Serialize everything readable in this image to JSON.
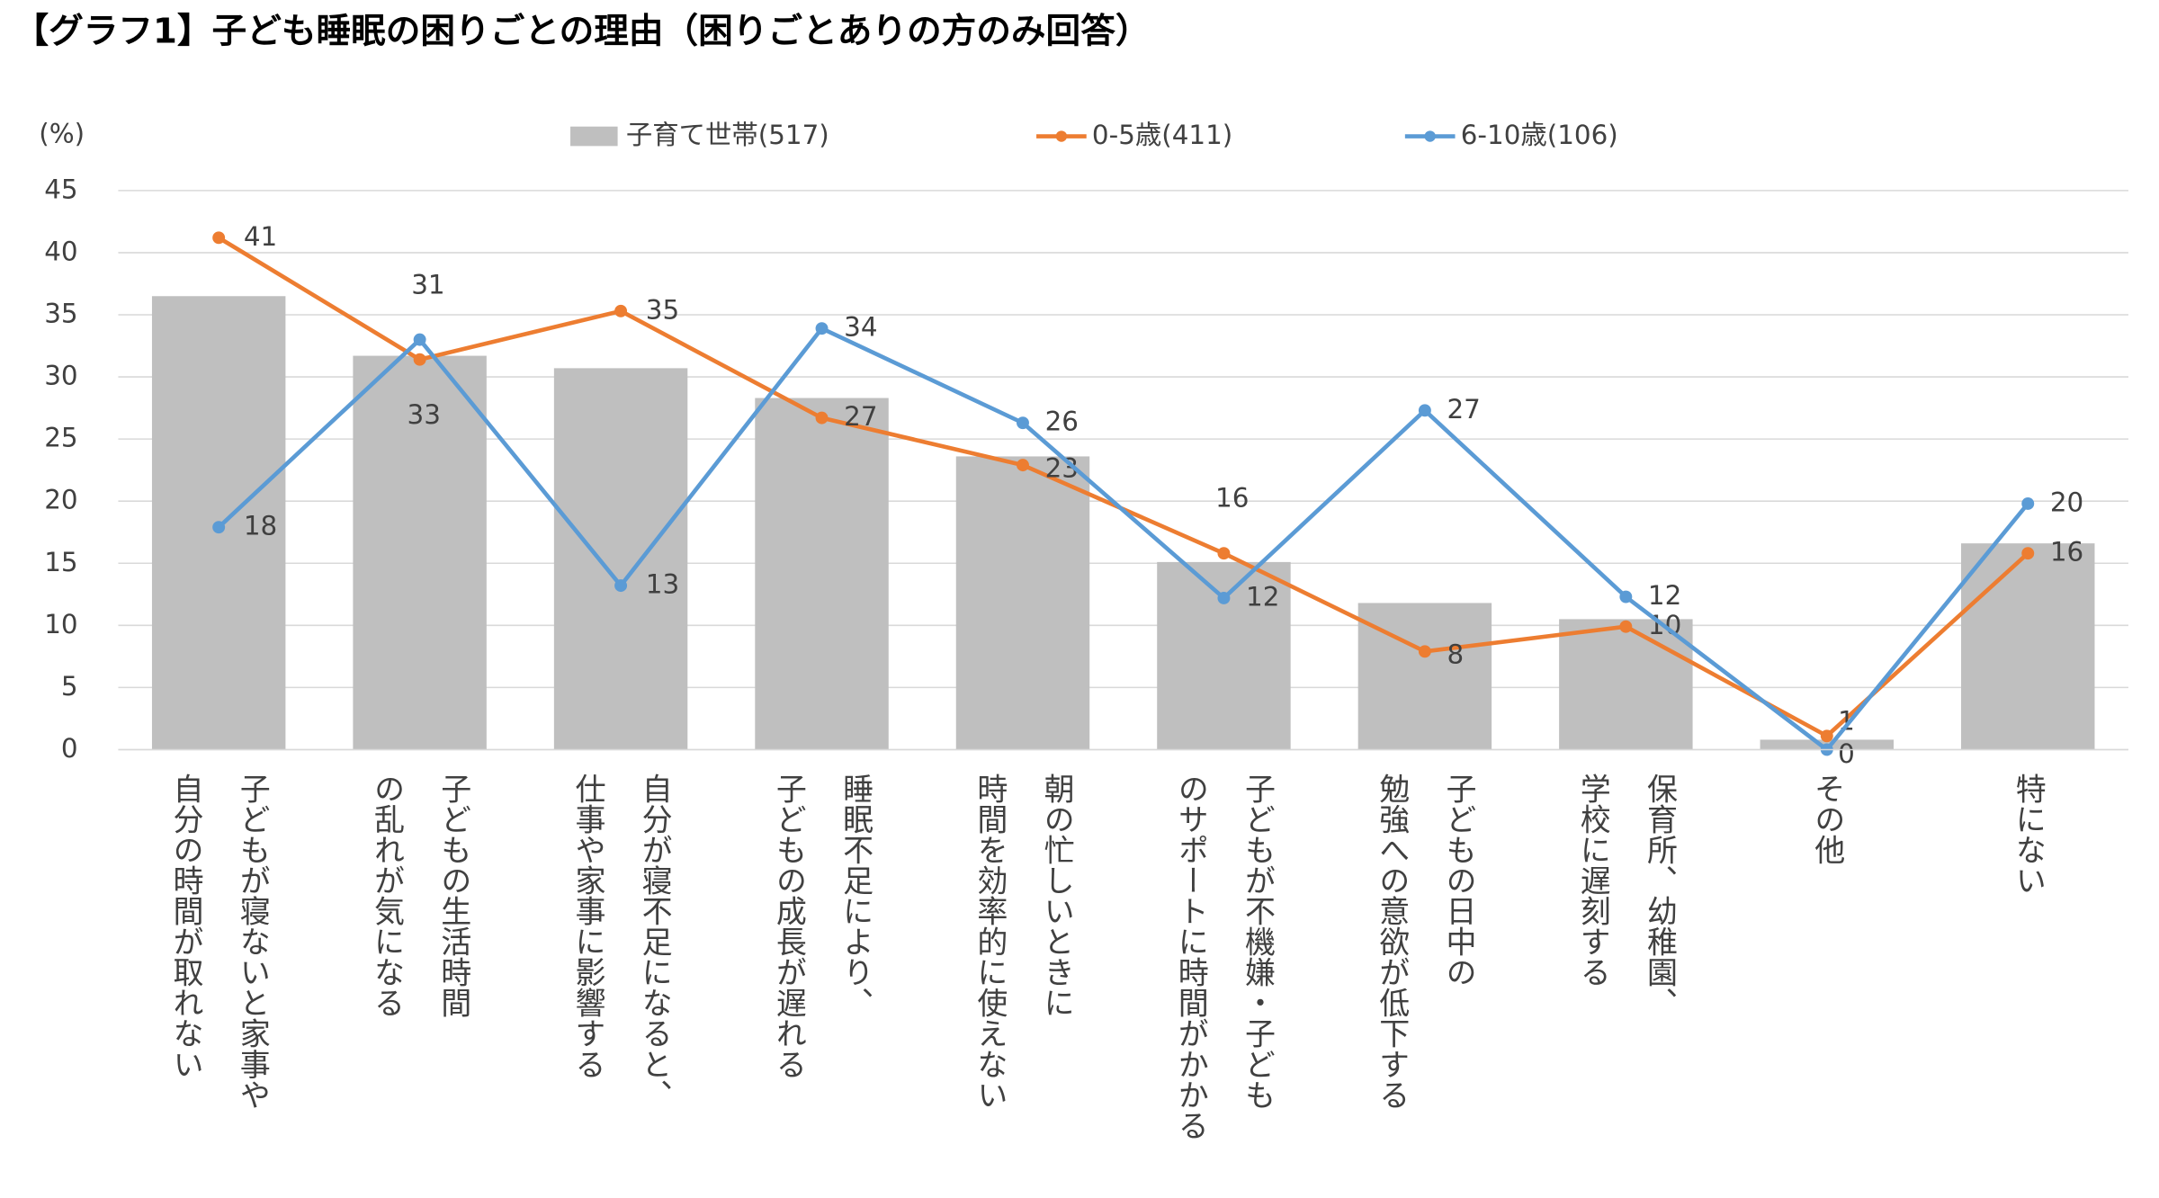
{
  "chart_data": {
    "type": "bar-line",
    "title": "【グラフ1】子ども睡眠の困りごとの理由（困りごとありの方のみ回答）",
    "y_unit": "(%)",
    "categories": [
      [
        "子どもが寝ないと家事や",
        "自分の時間が取れない"
      ],
      [
        "子どもの生活時間",
        "の乱れが気になる"
      ],
      [
        "自分が寝不足になると、",
        "仕事や家事に影響する"
      ],
      [
        "睡眠不足により、",
        "子どもの成長が遅れる"
      ],
      [
        "朝の忙しいときに",
        "時間を効率的に使えない"
      ],
      [
        "子どもが不機嫌・子ども",
        "のサポートに時間がかかる"
      ],
      [
        "子どもの日中の",
        "勉強への意欲が低下する"
      ],
      [
        "保育所、幼稚園、",
        "学校に遅刻する"
      ],
      [
        "その他"
      ],
      [
        "特にない"
      ]
    ],
    "series": [
      {
        "name": "子育て世帯(517)",
        "type": "bar",
        "color": "#bfbfbf",
        "values": [
          36.5,
          31.7,
          30.7,
          28.3,
          23.6,
          15.1,
          11.8,
          10.5,
          0.8,
          16.6
        ]
      },
      {
        "name": "0-5歳(411)",
        "type": "line",
        "color": "#ed7d31",
        "values": [
          41.2,
          31.4,
          35.3,
          26.7,
          22.9,
          15.8,
          7.9,
          9.9,
          1.1,
          15.8
        ],
        "value_labels": [
          "41",
          "31",
          "35",
          "27",
          "23",
          "16",
          "8",
          "10",
          "1",
          "16"
        ]
      },
      {
        "name": "6-10歳(106)",
        "type": "line",
        "color": "#5b9bd5",
        "values": [
          17.9,
          33.0,
          13.2,
          33.9,
          26.3,
          12.2,
          27.3,
          12.3,
          0,
          19.8
        ],
        "value_labels": [
          "18",
          "33",
          "13",
          "34",
          "26",
          "12",
          "27",
          "12",
          "0",
          "20"
        ]
      }
    ],
    "ylim": [
      0,
      45
    ],
    "yticks": [
      0,
      5,
      10,
      15,
      20,
      25,
      30,
      35,
      40,
      45
    ],
    "grid": true,
    "legend": "top"
  }
}
